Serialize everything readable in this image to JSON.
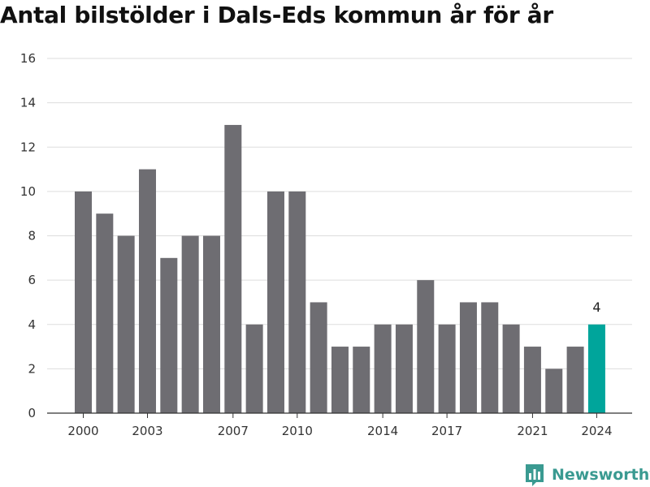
{
  "title": "Antal bilstölder i Dals-Eds kommun år för år",
  "brand": {
    "name": "Newsworthy",
    "icon": "newsworthy-logo-icon"
  },
  "colors": {
    "bar": "#6e6d72",
    "highlight": "#00a59b",
    "grid": "#dddddd",
    "axis": "#333333"
  },
  "chart_data": {
    "type": "bar",
    "title": "Antal bilstölder i Dals-Eds kommun år för år",
    "xlabel": "",
    "ylabel": "",
    "categories": [
      "2000",
      "2001",
      "2002",
      "2003",
      "2004",
      "2005",
      "2006",
      "2007",
      "2008",
      "2009",
      "2010",
      "2011",
      "2012",
      "2013",
      "2014",
      "2015",
      "2016",
      "2017",
      "2018",
      "2019",
      "2020",
      "2021",
      "2022",
      "2023",
      "2024"
    ],
    "values": [
      10,
      9,
      8,
      11,
      7,
      8,
      8,
      13,
      4,
      10,
      10,
      5,
      3,
      3,
      4,
      4,
      6,
      4,
      5,
      5,
      4,
      3,
      2,
      3,
      4
    ],
    "highlight": {
      "category": "2024",
      "label": "4"
    },
    "ylim": [
      0,
      16
    ],
    "yticks": [
      0,
      2,
      4,
      6,
      8,
      10,
      12,
      14,
      16
    ],
    "xtick_labels": [
      "2000",
      "2003",
      "2007",
      "2010",
      "2014",
      "2017",
      "2021",
      "2024"
    ],
    "grid": true,
    "legend": "none"
  }
}
